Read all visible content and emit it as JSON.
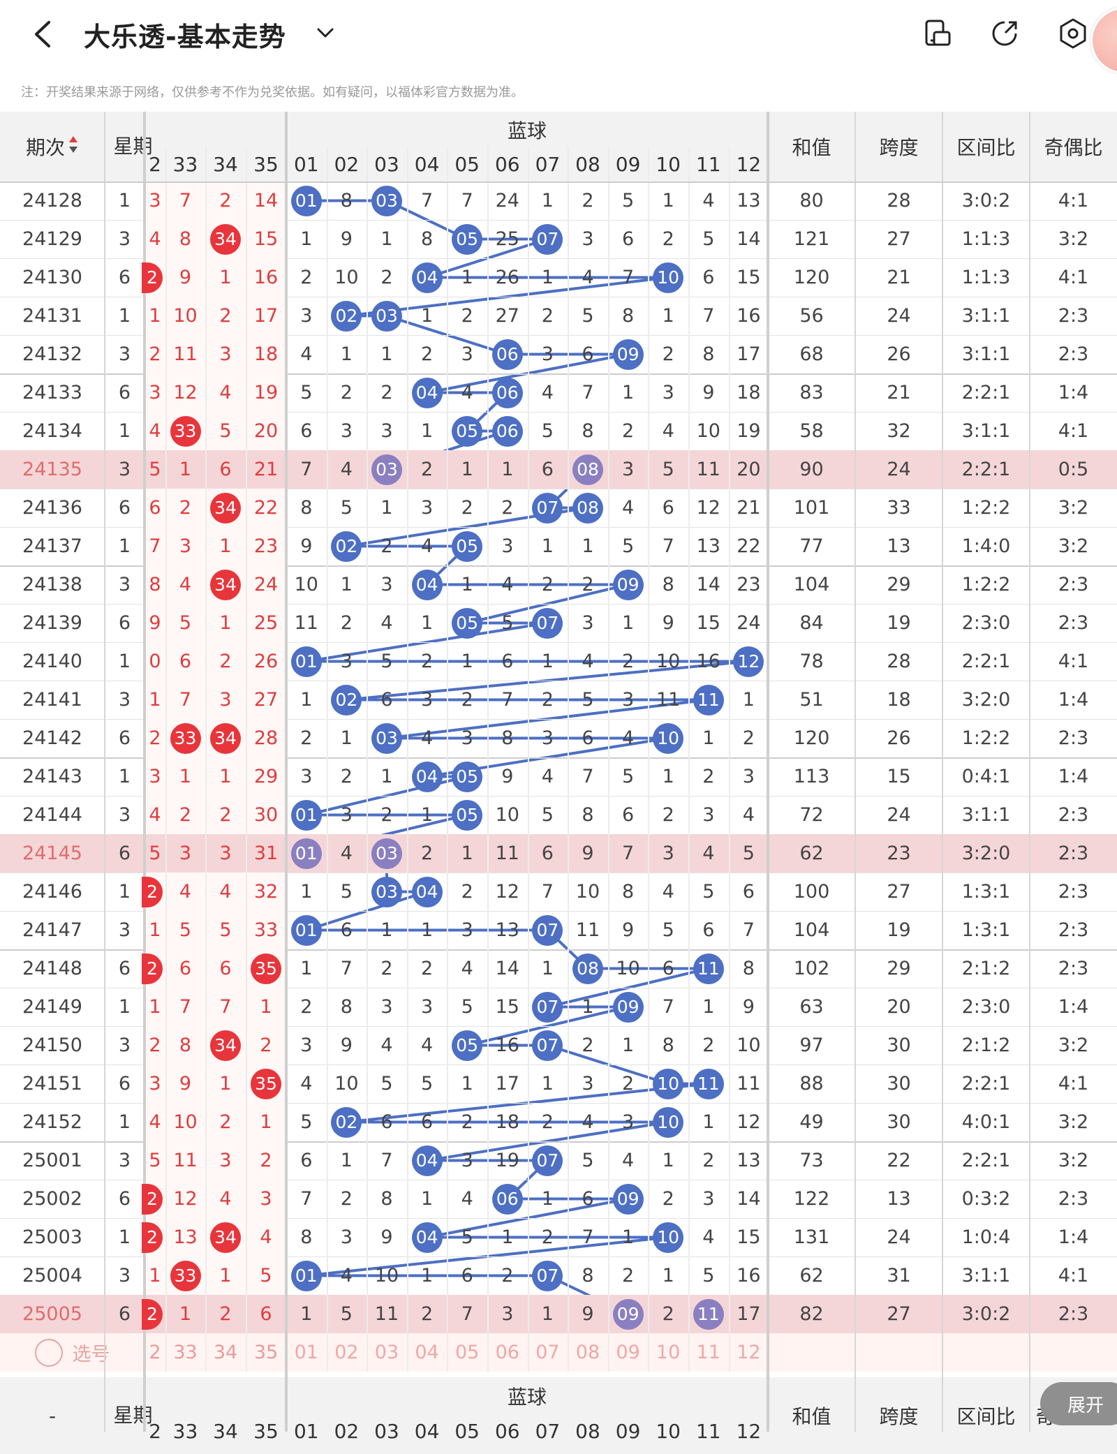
{
  "header": {
    "title": "大乐透-基本走势",
    "note": "注：开奖结果来源于网络，仅供参考不作为兑奖依据。如有疑问，以福体彩官方数据为准。"
  },
  "icons": [
    "back-icon",
    "chevron-down-icon",
    "layout-icon",
    "share-icon",
    "settings-icon"
  ],
  "colors": {
    "red": "#e03c3c",
    "blue_ball": "#4d6fc4",
    "highlight_row": "#f4d6d8",
    "purple_ball": "#8a7fc0"
  },
  "columns": {
    "period": "期次",
    "weekday": "星期",
    "blue_group": "蓝球",
    "sum": "和值",
    "span": "跨度",
    "zone_ratio": "区间比",
    "odd_even": "奇偶比",
    "red_partial": [
      "2",
      "33",
      "34",
      "35"
    ],
    "blue": [
      "01",
      "02",
      "03",
      "04",
      "05",
      "06",
      "07",
      "08",
      "09",
      "10",
      "11",
      "12"
    ]
  },
  "rows": [
    {
      "p": "24128",
      "w": "1",
      "r": [
        "3",
        "7",
        "2",
        "14"
      ],
      "rb": [],
      "b": [
        "01",
        "8",
        "03",
        "7",
        "7",
        "24",
        "1",
        "2",
        "5",
        "1",
        "4",
        "13"
      ],
      "bb": [
        0,
        2
      ],
      "s": "80",
      "sp": "28",
      "z": "3:0:2",
      "o": "4:1",
      "hl": false
    },
    {
      "p": "24129",
      "w": "3",
      "r": [
        "4",
        "8",
        "34",
        "15"
      ],
      "rb": [
        2
      ],
      "b": [
        "1",
        "9",
        "1",
        "8",
        "05",
        "25",
        "07",
        "3",
        "6",
        "2",
        "5",
        "14"
      ],
      "bb": [
        4,
        6
      ],
      "s": "121",
      "sp": "27",
      "z": "1:1:3",
      "o": "3:2",
      "hl": false
    },
    {
      "p": "24130",
      "w": "6",
      "r": [
        "2",
        "9",
        "1",
        "16"
      ],
      "rb": [
        0
      ],
      "b": [
        "2",
        "10",
        "2",
        "04",
        "1",
        "26",
        "1",
        "4",
        "7",
        "10",
        "6",
        "15"
      ],
      "bb": [
        3,
        9
      ],
      "s": "120",
      "sp": "21",
      "z": "1:1:3",
      "o": "4:1",
      "hl": false
    },
    {
      "p": "24131",
      "w": "1",
      "r": [
        "1",
        "10",
        "2",
        "17"
      ],
      "rb": [],
      "b": [
        "3",
        "02",
        "03",
        "1",
        "2",
        "27",
        "2",
        "5",
        "8",
        "1",
        "7",
        "16"
      ],
      "bb": [
        1,
        2
      ],
      "s": "56",
      "sp": "24",
      "z": "3:1:1",
      "o": "2:3",
      "hl": false
    },
    {
      "p": "24132",
      "w": "3",
      "r": [
        "2",
        "11",
        "3",
        "18"
      ],
      "rb": [],
      "b": [
        "4",
        "1",
        "1",
        "2",
        "3",
        "06",
        "3",
        "6",
        "09",
        "2",
        "8",
        "17"
      ],
      "bb": [
        5,
        8
      ],
      "s": "68",
      "sp": "26",
      "z": "3:1:1",
      "o": "2:3",
      "hl": false
    },
    {
      "p": "24133",
      "w": "6",
      "r": [
        "3",
        "12",
        "4",
        "19"
      ],
      "rb": [],
      "b": [
        "5",
        "2",
        "2",
        "04",
        "4",
        "06",
        "4",
        "7",
        "1",
        "3",
        "9",
        "18"
      ],
      "bb": [
        3,
        5
      ],
      "s": "83",
      "sp": "21",
      "z": "2:2:1",
      "o": "1:4",
      "hl": false
    },
    {
      "p": "24134",
      "w": "1",
      "r": [
        "4",
        "33",
        "5",
        "20"
      ],
      "rb": [
        1
      ],
      "b": [
        "6",
        "3",
        "3",
        "1",
        "05",
        "06",
        "5",
        "8",
        "2",
        "4",
        "10",
        "19"
      ],
      "bb": [
        4,
        5
      ],
      "s": "58",
      "sp": "32",
      "z": "3:1:1",
      "o": "4:1",
      "hl": false
    },
    {
      "p": "24135",
      "w": "3",
      "r": [
        "5",
        "1",
        "6",
        "21"
      ],
      "rb": [],
      "b": [
        "7",
        "4",
        "03",
        "2",
        "1",
        "1",
        "6",
        "08",
        "3",
        "5",
        "11",
        "20"
      ],
      "bb": [
        2,
        7
      ],
      "s": "90",
      "sp": "24",
      "z": "2:2:1",
      "o": "0:5",
      "hl": true
    },
    {
      "p": "24136",
      "w": "6",
      "r": [
        "6",
        "2",
        "34",
        "22"
      ],
      "rb": [
        2
      ],
      "b": [
        "8",
        "5",
        "1",
        "3",
        "2",
        "2",
        "07",
        "08",
        "4",
        "6",
        "12",
        "21"
      ],
      "bb": [
        6,
        7
      ],
      "s": "101",
      "sp": "33",
      "z": "1:2:2",
      "o": "3:2",
      "hl": false
    },
    {
      "p": "24137",
      "w": "1",
      "r": [
        "7",
        "3",
        "1",
        "23"
      ],
      "rb": [],
      "b": [
        "9",
        "02",
        "2",
        "4",
        "05",
        "3",
        "1",
        "1",
        "5",
        "7",
        "13",
        "22"
      ],
      "bb": [
        1,
        4
      ],
      "s": "77",
      "sp": "13",
      "z": "1:4:0",
      "o": "3:2",
      "hl": false
    },
    {
      "p": "24138",
      "w": "3",
      "r": [
        "8",
        "4",
        "34",
        "24"
      ],
      "rb": [
        2
      ],
      "b": [
        "10",
        "1",
        "3",
        "04",
        "1",
        "4",
        "2",
        "2",
        "09",
        "8",
        "14",
        "23"
      ],
      "bb": [
        3,
        8
      ],
      "s": "104",
      "sp": "29",
      "z": "1:2:2",
      "o": "2:3",
      "hl": false
    },
    {
      "p": "24139",
      "w": "6",
      "r": [
        "9",
        "5",
        "1",
        "25"
      ],
      "rb": [],
      "b": [
        "11",
        "2",
        "4",
        "1",
        "05",
        "5",
        "07",
        "3",
        "1",
        "9",
        "15",
        "24"
      ],
      "bb": [
        4,
        6
      ],
      "s": "84",
      "sp": "19",
      "z": "2:3:0",
      "o": "2:3",
      "hl": false
    },
    {
      "p": "24140",
      "w": "1",
      "r": [
        "0",
        "6",
        "2",
        "26"
      ],
      "rb": [],
      "b": [
        "01",
        "3",
        "5",
        "2",
        "1",
        "6",
        "1",
        "4",
        "2",
        "10",
        "16",
        "12"
      ],
      "bb": [
        0,
        11
      ],
      "s": "78",
      "sp": "28",
      "z": "2:2:1",
      "o": "4:1",
      "hl": false
    },
    {
      "p": "24141",
      "w": "3",
      "r": [
        "1",
        "7",
        "3",
        "27"
      ],
      "rb": [],
      "b": [
        "1",
        "02",
        "6",
        "3",
        "2",
        "7",
        "2",
        "5",
        "3",
        "11",
        "11",
        "1"
      ],
      "bb": [
        1,
        10
      ],
      "s": "51",
      "sp": "18",
      "z": "3:2:0",
      "o": "1:4",
      "hl": false
    },
    {
      "p": "24142",
      "w": "6",
      "r": [
        "2",
        "33",
        "34",
        "28"
      ],
      "rb": [
        1,
        2
      ],
      "b": [
        "2",
        "1",
        "03",
        "4",
        "3",
        "8",
        "3",
        "6",
        "4",
        "10",
        "1",
        "2"
      ],
      "bb": [
        2,
        9
      ],
      "s": "120",
      "sp": "26",
      "z": "1:2:2",
      "o": "2:3",
      "hl": false
    },
    {
      "p": "24143",
      "w": "1",
      "r": [
        "3",
        "1",
        "1",
        "29"
      ],
      "rb": [],
      "b": [
        "3",
        "2",
        "1",
        "04",
        "05",
        "9",
        "4",
        "7",
        "5",
        "1",
        "2",
        "3"
      ],
      "bb": [
        3,
        4
      ],
      "s": "113",
      "sp": "15",
      "z": "0:4:1",
      "o": "1:4",
      "hl": false
    },
    {
      "p": "24144",
      "w": "3",
      "r": [
        "4",
        "2",
        "2",
        "30"
      ],
      "rb": [],
      "b": [
        "01",
        "3",
        "2",
        "1",
        "05",
        "10",
        "5",
        "8",
        "6",
        "2",
        "3",
        "4"
      ],
      "bb": [
        0,
        4
      ],
      "s": "72",
      "sp": "24",
      "z": "3:1:1",
      "o": "2:3",
      "hl": false
    },
    {
      "p": "24145",
      "w": "6",
      "r": [
        "5",
        "3",
        "3",
        "31"
      ],
      "rb": [],
      "b": [
        "01",
        "4",
        "03",
        "2",
        "1",
        "11",
        "6",
        "9",
        "7",
        "3",
        "4",
        "5"
      ],
      "bb": [
        0,
        2
      ],
      "s": "62",
      "sp": "23",
      "z": "3:2:0",
      "o": "2:3",
      "hl": true
    },
    {
      "p": "24146",
      "w": "1",
      "r": [
        "2",
        "4",
        "4",
        "32"
      ],
      "rb": [
        0
      ],
      "b": [
        "1",
        "5",
        "03",
        "04",
        "2",
        "12",
        "7",
        "10",
        "8",
        "4",
        "5",
        "6"
      ],
      "bb": [
        2,
        3
      ],
      "s": "100",
      "sp": "27",
      "z": "1:3:1",
      "o": "2:3",
      "hl": false
    },
    {
      "p": "24147",
      "w": "3",
      "r": [
        "1",
        "5",
        "5",
        "33"
      ],
      "rb": [],
      "b": [
        "01",
        "6",
        "1",
        "1",
        "3",
        "13",
        "07",
        "11",
        "9",
        "5",
        "6",
        "7"
      ],
      "bb": [
        0,
        6
      ],
      "s": "104",
      "sp": "19",
      "z": "1:3:1",
      "o": "2:3",
      "hl": false
    },
    {
      "p": "24148",
      "w": "6",
      "r": [
        "2",
        "6",
        "6",
        "35"
      ],
      "rb": [
        0,
        3
      ],
      "b": [
        "1",
        "7",
        "2",
        "2",
        "4",
        "14",
        "1",
        "08",
        "10",
        "6",
        "11",
        "8"
      ],
      "bb": [
        7,
        10
      ],
      "s": "102",
      "sp": "29",
      "z": "2:1:2",
      "o": "2:3",
      "hl": false
    },
    {
      "p": "24149",
      "w": "1",
      "r": [
        "1",
        "7",
        "7",
        "1"
      ],
      "rb": [],
      "b": [
        "2",
        "8",
        "3",
        "3",
        "5",
        "15",
        "07",
        "1",
        "09",
        "7",
        "1",
        "9"
      ],
      "bb": [
        6,
        8
      ],
      "s": "63",
      "sp": "20",
      "z": "2:3:0",
      "o": "1:4",
      "hl": false
    },
    {
      "p": "24150",
      "w": "3",
      "r": [
        "2",
        "8",
        "34",
        "2"
      ],
      "rb": [
        2
      ],
      "b": [
        "3",
        "9",
        "4",
        "4",
        "05",
        "16",
        "07",
        "2",
        "1",
        "8",
        "2",
        "10"
      ],
      "bb": [
        4,
        6
      ],
      "s": "97",
      "sp": "30",
      "z": "2:1:2",
      "o": "3:2",
      "hl": false
    },
    {
      "p": "24151",
      "w": "6",
      "r": [
        "3",
        "9",
        "1",
        "35"
      ],
      "rb": [
        3
      ],
      "b": [
        "4",
        "10",
        "5",
        "5",
        "1",
        "17",
        "1",
        "3",
        "2",
        "10",
        "11",
        "11"
      ],
      "bb": [
        9,
        10
      ],
      "s": "88",
      "sp": "30",
      "z": "2:2:1",
      "o": "4:1",
      "hl": false
    },
    {
      "p": "24152",
      "w": "1",
      "r": [
        "4",
        "10",
        "2",
        "1"
      ],
      "rb": [],
      "b": [
        "5",
        "02",
        "6",
        "6",
        "2",
        "18",
        "2",
        "4",
        "3",
        "10",
        "1",
        "12"
      ],
      "bb": [
        1,
        9
      ],
      "s": "49",
      "sp": "30",
      "z": "4:0:1",
      "o": "3:2",
      "hl": false
    },
    {
      "p": "25001",
      "w": "3",
      "r": [
        "5",
        "11",
        "3",
        "2"
      ],
      "rb": [],
      "b": [
        "6",
        "1",
        "7",
        "04",
        "3",
        "19",
        "07",
        "5",
        "4",
        "1",
        "2",
        "13"
      ],
      "bb": [
        3,
        6
      ],
      "s": "73",
      "sp": "22",
      "z": "2:2:1",
      "o": "3:2",
      "hl": false
    },
    {
      "p": "25002",
      "w": "6",
      "r": [
        "2",
        "12",
        "4",
        "3"
      ],
      "rb": [
        0
      ],
      "b": [
        "7",
        "2",
        "8",
        "1",
        "4",
        "06",
        "1",
        "6",
        "09",
        "2",
        "3",
        "14"
      ],
      "bb": [
        5,
        8
      ],
      "s": "122",
      "sp": "13",
      "z": "0:3:2",
      "o": "2:3",
      "hl": false
    },
    {
      "p": "25003",
      "w": "1",
      "r": [
        "2",
        "13",
        "34",
        "4"
      ],
      "rb": [
        0,
        2
      ],
      "b": [
        "8",
        "3",
        "9",
        "04",
        "5",
        "1",
        "2",
        "7",
        "1",
        "10",
        "4",
        "15"
      ],
      "bb": [
        3,
        9
      ],
      "s": "131",
      "sp": "24",
      "z": "1:0:4",
      "o": "1:4",
      "hl": false
    },
    {
      "p": "25004",
      "w": "3",
      "r": [
        "1",
        "33",
        "1",
        "5"
      ],
      "rb": [
        1
      ],
      "b": [
        "01",
        "4",
        "10",
        "1",
        "6",
        "2",
        "07",
        "8",
        "2",
        "1",
        "5",
        "16"
      ],
      "bb": [
        0,
        6
      ],
      "s": "62",
      "sp": "31",
      "z": "3:1:1",
      "o": "4:1",
      "hl": false
    },
    {
      "p": "25005",
      "w": "6",
      "r": [
        "2",
        "1",
        "2",
        "6"
      ],
      "rb": [
        0
      ],
      "b": [
        "1",
        "5",
        "11",
        "2",
        "7",
        "3",
        "1",
        "9",
        "09",
        "2",
        "11",
        "17"
      ],
      "bb": [
        8,
        10
      ],
      "s": "82",
      "sp": "27",
      "z": "3:0:2",
      "o": "2:3",
      "hl": true
    }
  ],
  "pick_row": {
    "label": "选号",
    "red": [
      "2",
      "33",
      "34",
      "35"
    ],
    "blue": [
      "01",
      "02",
      "03",
      "04",
      "05",
      "06",
      "07",
      "08",
      "09",
      "10",
      "11",
      "12"
    ]
  },
  "footer_header": {
    "period": "-",
    "weekday": "星期",
    "blue_group": "蓝球",
    "sum": "和值",
    "span": "跨度",
    "zone_ratio": "区间比",
    "odd_even": "奇",
    "red_partial": [
      "2",
      "33",
      "34",
      "35"
    ],
    "blue": [
      "01",
      "02",
      "03",
      "04",
      "05",
      "06",
      "07",
      "08",
      "09",
      "10",
      "11",
      "12"
    ]
  },
  "expand_button": "展开"
}
